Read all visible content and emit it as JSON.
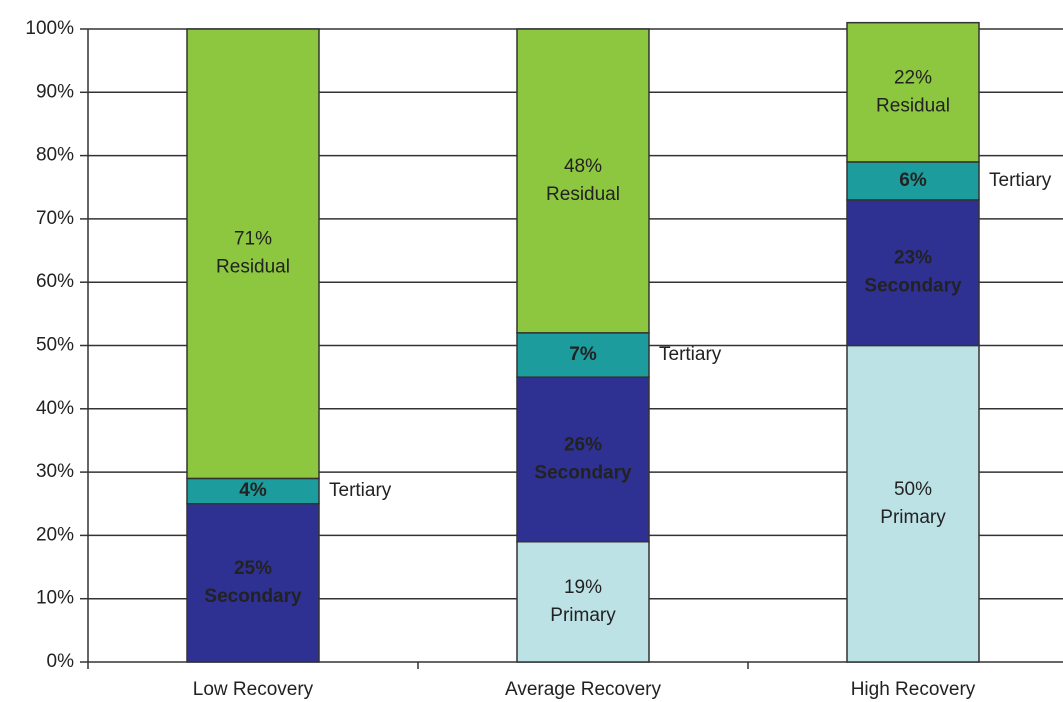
{
  "chart_data": {
    "type": "stacked_bar",
    "categories": [
      "Low Recovery",
      "Average Recovery",
      "High Recovery"
    ],
    "series": [
      {
        "name": "Primary",
        "color": "#bde2e6",
        "values": [
          null,
          19,
          50
        ],
        "value_labels": [
          null,
          "19%",
          "50%"
        ]
      },
      {
        "name": "Secondary",
        "color": "#2e3192",
        "values": [
          25,
          26,
          23
        ],
        "value_labels": [
          "25%",
          "26%",
          "23%"
        ]
      },
      {
        "name": "Tertiary",
        "color": "#1c9c9c",
        "values": [
          4,
          7,
          6
        ],
        "value_labels": [
          "4%",
          "7%",
          "6%"
        ]
      },
      {
        "name": "Residual",
        "color": "#8dc63f",
        "values": [
          71,
          48,
          22
        ],
        "value_labels": [
          "71%",
          "48%",
          "22%"
        ]
      }
    ],
    "ylim": [
      0,
      100
    ],
    "yticks": [
      {
        "value": 0,
        "label": "0%"
      },
      {
        "value": 10,
        "label": "10%"
      },
      {
        "value": 20,
        "label": "20%"
      },
      {
        "value": 30,
        "label": "30%"
      },
      {
        "value": 40,
        "label": "40%"
      },
      {
        "value": 50,
        "label": "50%"
      },
      {
        "value": 60,
        "label": "60%"
      },
      {
        "value": 70,
        "label": "70%"
      },
      {
        "value": 80,
        "label": "80%"
      },
      {
        "value": 90,
        "label": "90%"
      },
      {
        "value": 100,
        "label": "100%"
      }
    ],
    "grid": true
  }
}
